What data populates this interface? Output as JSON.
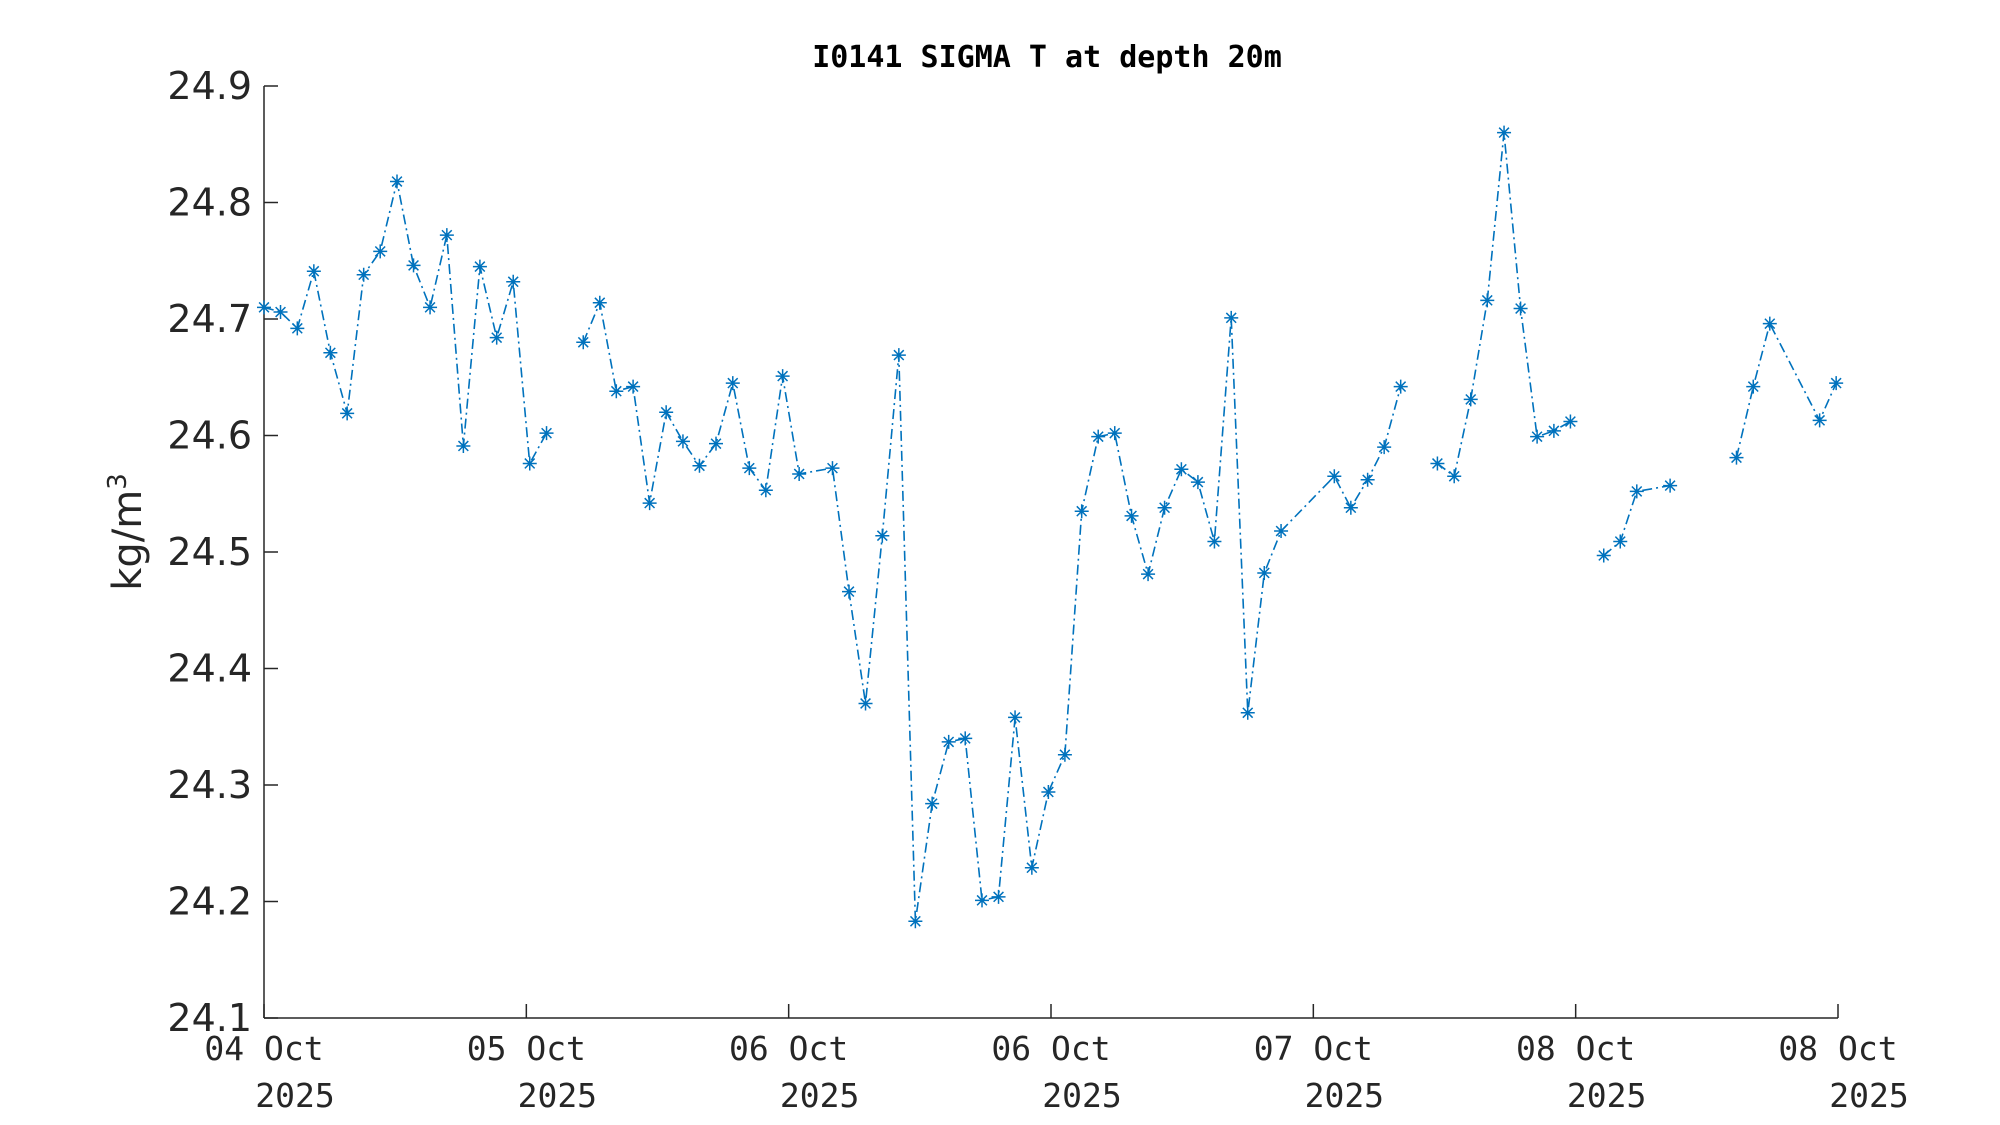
{
  "chart_data": {
    "type": "line",
    "title": "I0141 SIGMA T at depth 20m",
    "ylabel": "kg/m",
    "ylabel_superscript": "3",
    "ylim": [
      24.1,
      24.9
    ],
    "yticks": [
      24.1,
      24.2,
      24.3,
      24.4,
      24.5,
      24.6,
      24.7,
      24.8,
      24.9
    ],
    "ytick_labels": [
      "24.1",
      "24.2",
      "24.3",
      "24.4",
      "24.5",
      "24.6",
      "24.7",
      "24.8",
      "24.9"
    ],
    "xlim": [
      0,
      6
    ],
    "xticks": [
      0,
      1,
      2,
      3,
      4,
      5,
      6
    ],
    "xtick_labels": [
      {
        "line1": "04 Oct",
        "line2": "2025"
      },
      {
        "line1": "05 Oct",
        "line2": "2025"
      },
      {
        "line1": "06 Oct",
        "line2": "2025"
      },
      {
        "line1": "06 Oct",
        "line2": "2025"
      },
      {
        "line1": "07 Oct",
        "line2": "2025"
      },
      {
        "line1": "08 Oct",
        "line2": "2025"
      },
      {
        "line1": "08 Oct",
        "line2": "2025"
      }
    ],
    "grid": false,
    "marker": "asterisk",
    "line_style": "dash-dot",
    "color": "#0072BD",
    "series": [
      {
        "segments": [
          [
            [
              0.0,
              24.71
            ],
            [
              0.063,
              24.706
            ],
            [
              0.127,
              24.692
            ],
            [
              0.19,
              24.741
            ],
            [
              0.253,
              24.671
            ],
            [
              0.317,
              24.619
            ],
            [
              0.38,
              24.738
            ],
            [
              0.443,
              24.758
            ],
            [
              0.507,
              24.818
            ],
            [
              0.57,
              24.746
            ],
            [
              0.633,
              24.71
            ],
            [
              0.697,
              24.772
            ],
            [
              0.76,
              24.591
            ],
            [
              0.823,
              24.745
            ],
            [
              0.887,
              24.684
            ],
            [
              0.95,
              24.732
            ],
            [
              1.013,
              24.576
            ],
            [
              1.077,
              24.602
            ]
          ],
          [
            [
              1.217,
              24.68
            ],
            [
              1.28,
              24.714
            ],
            [
              1.343,
              24.638
            ],
            [
              1.407,
              24.642
            ],
            [
              1.47,
              24.542
            ],
            [
              1.533,
              24.62
            ],
            [
              1.597,
              24.595
            ],
            [
              1.66,
              24.574
            ],
            [
              1.723,
              24.593
            ],
            [
              1.787,
              24.645
            ],
            [
              1.85,
              24.572
            ],
            [
              1.913,
              24.553
            ],
            [
              1.977,
              24.651
            ],
            [
              2.04,
              24.567
            ],
            [
              2.167,
              24.572
            ],
            [
              2.23,
              24.466
            ],
            [
              2.293,
              24.37
            ],
            [
              2.357,
              24.514
            ],
            [
              2.42,
              24.669
            ],
            [
              2.483,
              24.183
            ],
            [
              2.547,
              24.284
            ],
            [
              2.61,
              24.337
            ],
            [
              2.673,
              24.34
            ],
            [
              2.737,
              24.201
            ],
            [
              2.8,
              24.204
            ],
            [
              2.863,
              24.358
            ],
            [
              2.927,
              24.229
            ],
            [
              2.99,
              24.294
            ],
            [
              3.053,
              24.326
            ],
            [
              3.117,
              24.535
            ],
            [
              3.18,
              24.599
            ],
            [
              3.243,
              24.602
            ],
            [
              3.307,
              24.531
            ],
            [
              3.37,
              24.481
            ],
            [
              3.433,
              24.538
            ],
            [
              3.497,
              24.571
            ],
            [
              3.56,
              24.56
            ],
            [
              3.623,
              24.509
            ],
            [
              3.687,
              24.701
            ],
            [
              3.75,
              24.362
            ],
            [
              3.813,
              24.482
            ],
            [
              3.877,
              24.518
            ],
            [
              4.08,
              24.565
            ],
            [
              4.143,
              24.538
            ],
            [
              4.207,
              24.562
            ],
            [
              4.27,
              24.59
            ],
            [
              4.333,
              24.642
            ]
          ],
          [
            [
              4.473,
              24.576
            ],
            [
              4.537,
              24.565
            ],
            [
              4.6,
              24.631
            ],
            [
              4.663,
              24.716
            ],
            [
              4.727,
              24.86
            ],
            [
              4.79,
              24.709
            ],
            [
              4.853,
              24.599
            ],
            [
              4.917,
              24.604
            ],
            [
              4.98,
              24.612
            ]
          ],
          [
            [
              5.107,
              24.497
            ],
            [
              5.17,
              24.509
            ],
            [
              5.233,
              24.552
            ],
            [
              5.36,
              24.557
            ]
          ],
          [
            [
              5.613,
              24.581
            ],
            [
              5.677,
              24.642
            ],
            [
              5.74,
              24.696
            ],
            [
              5.93,
              24.613
            ],
            [
              5.993,
              24.645
            ]
          ]
        ]
      }
    ]
  }
}
